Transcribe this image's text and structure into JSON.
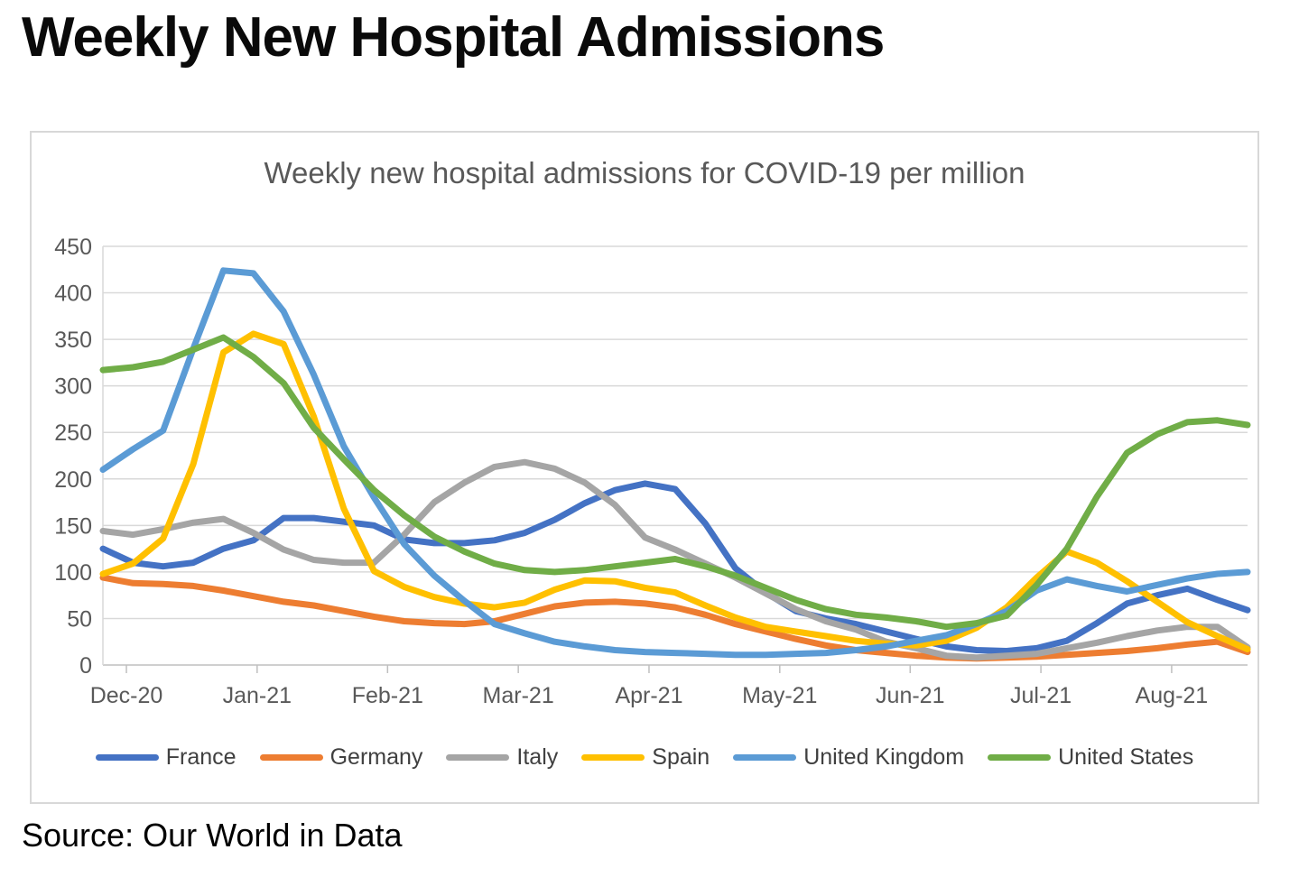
{
  "page": {
    "title": "Weekly New Hospital Admissions",
    "source": "Source: Our World in Data"
  },
  "chart_data": {
    "type": "line",
    "title": "Weekly new hospital admissions for COVID-19 per million",
    "grid": true,
    "legend_position": "bottom",
    "n_points": 39,
    "x_axis": {
      "tick_labels": [
        "Dec-20",
        "Jan-21",
        "Feb-21",
        "Mar-21",
        "Apr-21",
        "May-21",
        "Jun-21",
        "Jul-21",
        "Aug-21"
      ],
      "tick_week_positions": [
        0.78,
        5.12,
        9.45,
        13.79,
        18.13,
        22.47,
        26.8,
        31.14,
        35.48
      ]
    },
    "y_axis": {
      "min": 0,
      "max": 450,
      "step": 50,
      "tick_labels": [
        "0",
        "50",
        "100",
        "150",
        "200",
        "250",
        "300",
        "350",
        "400",
        "450"
      ]
    },
    "colors": {
      "grid": "#d9d9d9",
      "axis": "#bfbfbf",
      "tick_label": "#595959",
      "legend_label": "#404040"
    },
    "series": [
      {
        "name": "France",
        "color": "#4472C4",
        "values": [
          125,
          110,
          106,
          110,
          125,
          134,
          158,
          158,
          154,
          150,
          135,
          131,
          131,
          134,
          142,
          156,
          174,
          188,
          195,
          189,
          152,
          104,
          78,
          58,
          50,
          44,
          36,
          28,
          20,
          16,
          15,
          18,
          26,
          45,
          66,
          75,
          82,
          70,
          59
        ]
      },
      {
        "name": "Germany",
        "color": "#ED7D31",
        "values": [
          94,
          88,
          87,
          85,
          80,
          74,
          68,
          64,
          58,
          52,
          47,
          45,
          44,
          47,
          55,
          63,
          67,
          68,
          66,
          62,
          54,
          44,
          36,
          28,
          21,
          16,
          13,
          10,
          8,
          7,
          8,
          9,
          11,
          13,
          15,
          18,
          22,
          25,
          14
        ]
      },
      {
        "name": "Italy",
        "color": "#A5A5A5",
        "values": [
          144,
          140,
          146,
          153,
          157,
          142,
          124,
          113,
          110,
          110,
          140,
          175,
          196,
          213,
          218,
          211,
          196,
          172,
          137,
          124,
          109,
          94,
          77,
          60,
          47,
          38,
          25,
          18,
          10,
          8,
          10,
          12,
          18,
          24,
          31,
          37,
          41,
          41,
          19
        ]
      },
      {
        "name": "Spain",
        "color": "#FFC000",
        "values": [
          98,
          109,
          136,
          216,
          336,
          356,
          345,
          267,
          168,
          101,
          84,
          73,
          66,
          62,
          67,
          81,
          91,
          90,
          83,
          78,
          64,
          51,
          41,
          36,
          31,
          26,
          23,
          21,
          26,
          40,
          62,
          94,
          122,
          110,
          90,
          68,
          46,
          31,
          17
        ]
      },
      {
        "name": "United Kingdom",
        "color": "#5B9BD5",
        "values": [
          210,
          232,
          252,
          340,
          424,
          421,
          380,
          312,
          235,
          180,
          130,
          96,
          69,
          44,
          34,
          25,
          20,
          16,
          14,
          13,
          12,
          11,
          11,
          12,
          13,
          16,
          20,
          26,
          32,
          44,
          58,
          80,
          92,
          85,
          79,
          86,
          93,
          98,
          100
        ]
      },
      {
        "name": "United States",
        "color": "#70AD47",
        "values": [
          317,
          320,
          326,
          339,
          352,
          331,
          303,
          255,
          221,
          188,
          161,
          138,
          122,
          109,
          102,
          100,
          102,
          106,
          110,
          114,
          106,
          96,
          83,
          70,
          60,
          54,
          51,
          47,
          41,
          45,
          53,
          86,
          125,
          181,
          228,
          248,
          261,
          263,
          258
        ]
      }
    ]
  }
}
